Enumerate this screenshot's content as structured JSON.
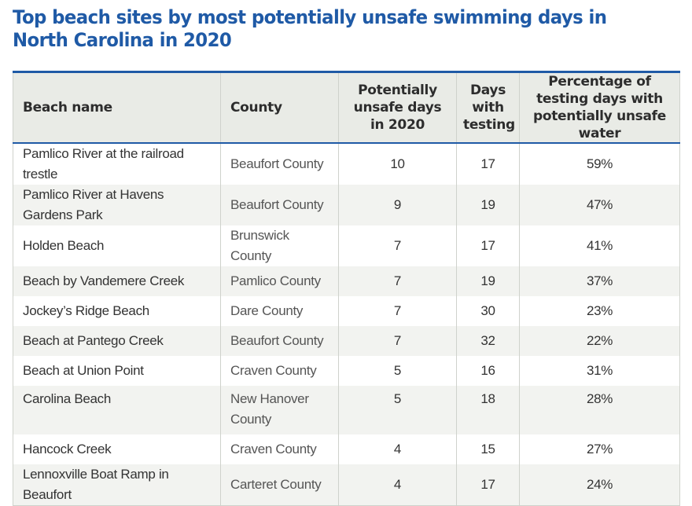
{
  "title": "Top beach sites by most potentially unsafe swimming days in North Carolina in 2020",
  "colors": {
    "title": "#1f5aa6",
    "header_bg": "#e9ebe6",
    "rule": "#1f5aa6"
  },
  "chart_data": {
    "type": "table",
    "title": "Top beach sites by most potentially unsafe swimming days in North Carolina in 2020",
    "columns": [
      "Beach name",
      "County",
      "Potentially unsafe days in 2020",
      "Days with testing",
      "Percentage of testing days with potentially unsafe water"
    ],
    "rows": [
      [
        "Pamlico River at the railroad trestle",
        "Beaufort County",
        "10",
        "17",
        "59%"
      ],
      [
        "Pamlico River at Havens Gardens Park",
        "Beaufort County",
        "9",
        "19",
        "47%"
      ],
      [
        "Holden Beach",
        "Brunswick County",
        "7",
        "17",
        "41%"
      ],
      [
        "Beach by Vandemere Creek",
        "Pamlico County",
        "7",
        "19",
        "37%"
      ],
      [
        "Jockey’s Ridge Beach",
        "Dare County",
        "7",
        "30",
        "23%"
      ],
      [
        "Beach at Pantego Creek",
        "Beaufort County",
        "7",
        "32",
        "22%"
      ],
      [
        "Beach at Union Point",
        "Craven County",
        "5",
        "16",
        "31%"
      ],
      [
        "Carolina Beach",
        "New Hanover County",
        "5",
        "18",
        "28%"
      ],
      [
        "Hancock Creek",
        "Craven County",
        "4",
        "15",
        "27%"
      ],
      [
        "Lennoxville Boat Ramp in Beaufort",
        "Carteret County",
        "4",
        "17",
        "24%"
      ]
    ]
  }
}
